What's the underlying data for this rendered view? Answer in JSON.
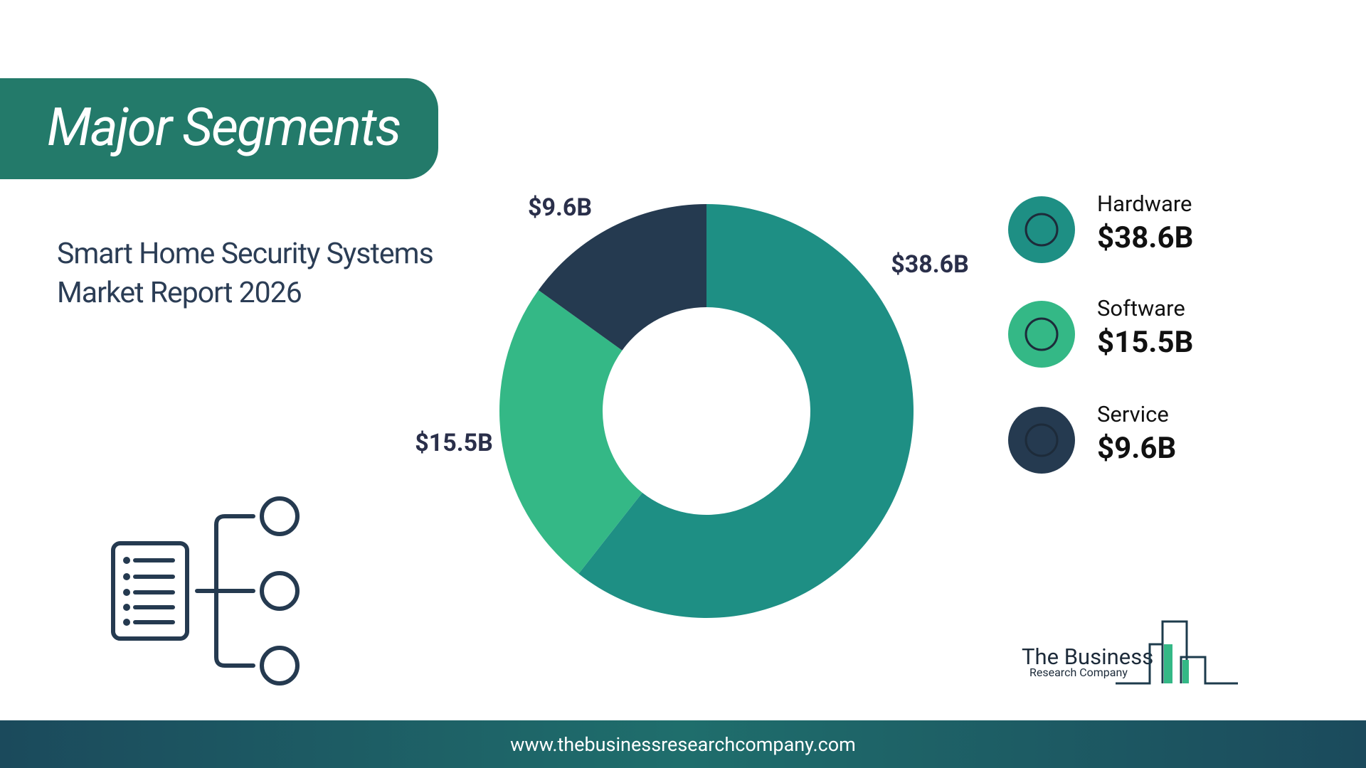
{
  "header": {
    "title": "Major Segments"
  },
  "subtitle": "Smart Home Security Systems Market Report 2026",
  "chart_data": {
    "type": "donut",
    "categories": [
      "Hardware",
      "Software",
      "Service"
    ],
    "values": [
      38.6,
      15.5,
      9.6
    ],
    "value_labels": [
      "$38.6B",
      "$15.5B",
      "$9.6B"
    ],
    "colors": [
      "#1e8f84",
      "#34b886",
      "#253a50"
    ]
  },
  "logo": {
    "line1": "The Business",
    "line2": "Research Company"
  },
  "footer": {
    "url": "www.thebusinessresearchcompany.com"
  }
}
